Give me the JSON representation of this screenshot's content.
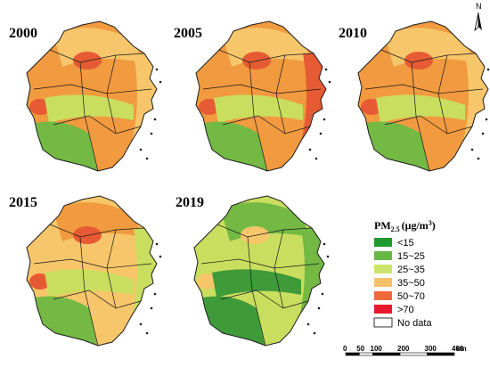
{
  "panels": [
    {
      "year": "2000",
      "tone": "orange"
    },
    {
      "year": "2005",
      "tone": "darker-orange"
    },
    {
      "year": "2010",
      "tone": "orange"
    },
    {
      "year": "2015",
      "tone": "yellow-orange"
    },
    {
      "year": "2019",
      "tone": "green"
    }
  ],
  "legend": {
    "title_main": "PM",
    "title_sub": "2.5",
    "title_unit": "(μg/m",
    "title_sup": "3",
    "title_close": ")",
    "items": [
      {
        "label": "<15",
        "color": "#1e9a2f"
      },
      {
        "label": "15~25",
        "color": "#69b844"
      },
      {
        "label": "25~35",
        "color": "#cde26a"
      },
      {
        "label": "35~50",
        "color": "#f5c06a"
      },
      {
        "label": "50~70",
        "color": "#ee6a3c"
      },
      {
        "label": ">70",
        "color": "#e8182b"
      },
      {
        "label": "No data",
        "color": "#ffffff"
      }
    ]
  },
  "scale_bar": {
    "ticks": [
      "0",
      "50",
      "100",
      "200",
      "300",
      "400"
    ],
    "tick_km": [
      0,
      50,
      100,
      200,
      300,
      400
    ],
    "unit": "km"
  },
  "north_arrow": {
    "label": "N",
    "icon": "north-arrow-icon"
  },
  "colors": {
    "boundary": "#1a1a1a",
    "green_dark": "#3f9a3a",
    "green": "#73b944",
    "yellow_green": "#c9de5e",
    "light_orange": "#f7c66b",
    "orange": "#f19a3f",
    "red_orange": "#e65b33",
    "red": "#e8182b"
  }
}
